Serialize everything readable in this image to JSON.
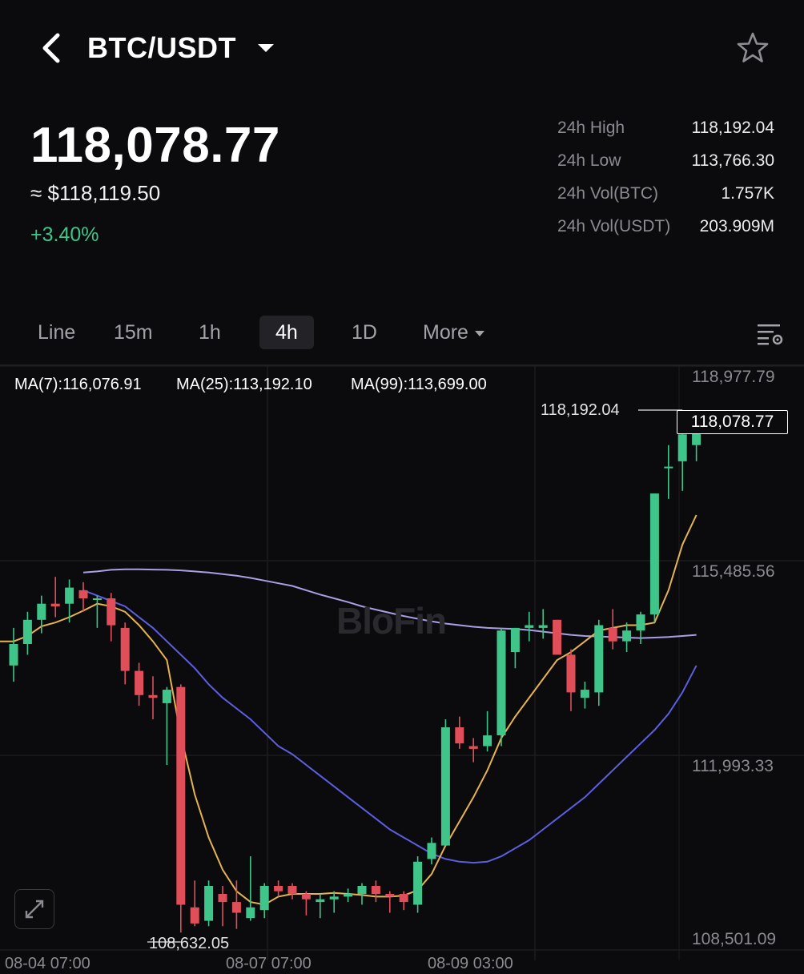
{
  "header": {
    "pair": "BTC/USDT",
    "back_icon": "chevron-left-icon",
    "dropdown_icon": "caret-down-icon",
    "favorite_icon": "star-outline-icon"
  },
  "ticker": {
    "last_price": "118,078.77",
    "usd_value": "≈ $118,119.50",
    "change": "+3.40%",
    "change_color": "#3fc58a",
    "stats": [
      {
        "label": "24h High",
        "value": "118,192.04"
      },
      {
        "label": "24h Low",
        "value": "113,766.30"
      },
      {
        "label": "24h Vol(BTC)",
        "value": "1.757K"
      },
      {
        "label": "24h Vol(USDT)",
        "value": "203.909M"
      }
    ]
  },
  "tabs": {
    "items": [
      "Line",
      "15m",
      "1h",
      "4h",
      "1D",
      "More"
    ],
    "active": "4h",
    "settings_icon": "chart-settings-icon"
  },
  "chart": {
    "ma7": "MA(7):116,076.91",
    "ma25": "MA(25):113,192.10",
    "ma99": "MA(99):113,699.00",
    "ma7_color": "#e5b44f",
    "ma25_color": "#5b5fe0",
    "ma99_color": "#a9a0e4",
    "up_color": "#3fc58a",
    "down_color": "#e04f59",
    "y_axis": [
      "118,977.79",
      "115,485.56",
      "111,993.33",
      "108,501.09"
    ],
    "current_price_tag": "118,078.77",
    "high_marker": "118,192.04",
    "low_marker": "108,632.05",
    "watermark": "BloFin",
    "expand_icon": "expand-icon",
    "date_labels": [
      "08-04 07:00",
      "08-07 07:00",
      "08-09 03:00"
    ]
  },
  "chart_data": {
    "type": "candlestick",
    "symbol": "BTC/USDT",
    "interval": "4h",
    "ylim": [
      108501.09,
      118977.79
    ],
    "y_ticks": [
      118977.79,
      115485.56,
      111993.33,
      108501.09
    ],
    "candles": [
      {
        "o": 113600,
        "h": 114300,
        "l": 113300,
        "c": 114000
      },
      {
        "o": 114000,
        "h": 114600,
        "l": 113800,
        "c": 114450
      },
      {
        "o": 114450,
        "h": 114900,
        "l": 114200,
        "c": 114750
      },
      {
        "o": 114750,
        "h": 115250,
        "l": 114500,
        "c": 114700
      },
      {
        "o": 114750,
        "h": 115200,
        "l": 114400,
        "c": 115050
      },
      {
        "o": 115000,
        "h": 115150,
        "l": 114600,
        "c": 114850
      },
      {
        "o": 114850,
        "h": 114900,
        "l": 114300,
        "c": 114850
      },
      {
        "o": 114850,
        "h": 114950,
        "l": 114050,
        "c": 114350
      },
      {
        "o": 114300,
        "h": 114400,
        "l": 113250,
        "c": 113500
      },
      {
        "o": 113500,
        "h": 113650,
        "l": 112850,
        "c": 113050
      },
      {
        "o": 113050,
        "h": 113400,
        "l": 112600,
        "c": 113000
      },
      {
        "o": 112900,
        "h": 113200,
        "l": 111750,
        "c": 113150
      },
      {
        "o": 113200,
        "h": 113250,
        "l": 108632,
        "c": 109150
      },
      {
        "o": 109100,
        "h": 109600,
        "l": 108750,
        "c": 108800
      },
      {
        "o": 108850,
        "h": 109600,
        "l": 108750,
        "c": 109500
      },
      {
        "o": 109350,
        "h": 109500,
        "l": 108750,
        "c": 109200
      },
      {
        "o": 109200,
        "h": 109600,
        "l": 108700,
        "c": 109000
      },
      {
        "o": 108900,
        "h": 110050,
        "l": 108850,
        "c": 109100
      },
      {
        "o": 109050,
        "h": 109550,
        "l": 108900,
        "c": 109500
      },
      {
        "o": 109500,
        "h": 109600,
        "l": 109300,
        "c": 109400
      },
      {
        "o": 109500,
        "h": 109550,
        "l": 109250,
        "c": 109350
      },
      {
        "o": 109350,
        "h": 109400,
        "l": 108950,
        "c": 109250
      },
      {
        "o": 109200,
        "h": 109350,
        "l": 108900,
        "c": 109250
      },
      {
        "o": 109250,
        "h": 109400,
        "l": 109000,
        "c": 109300
      },
      {
        "o": 109300,
        "h": 109450,
        "l": 109200,
        "c": 109350
      },
      {
        "o": 109350,
        "h": 109550,
        "l": 109150,
        "c": 109500
      },
      {
        "o": 109500,
        "h": 109600,
        "l": 109200,
        "c": 109350
      },
      {
        "o": 109350,
        "h": 109400,
        "l": 109000,
        "c": 109300
      },
      {
        "o": 109350,
        "h": 109400,
        "l": 109050,
        "c": 109200
      },
      {
        "o": 109150,
        "h": 110050,
        "l": 109000,
        "c": 109950
      },
      {
        "o": 110000,
        "h": 110400,
        "l": 109900,
        "c": 110300
      },
      {
        "o": 110250,
        "h": 112600,
        "l": 110250,
        "c": 112450
      },
      {
        "o": 112450,
        "h": 112650,
        "l": 112050,
        "c": 112150
      },
      {
        "o": 112100,
        "h": 112250,
        "l": 111800,
        "c": 112050
      },
      {
        "o": 112100,
        "h": 112750,
        "l": 112000,
        "c": 112300
      },
      {
        "o": 112300,
        "h": 114300,
        "l": 112100,
        "c": 114250
      },
      {
        "o": 113850,
        "h": 114300,
        "l": 113550,
        "c": 114300
      },
      {
        "o": 114300,
        "h": 114600,
        "l": 114050,
        "c": 114350
      },
      {
        "o": 114300,
        "h": 114650,
        "l": 114100,
        "c": 114350
      },
      {
        "o": 114450,
        "h": 114450,
        "l": 113800,
        "c": 113800
      },
      {
        "o": 113800,
        "h": 113900,
        "l": 112750,
        "c": 113100
      },
      {
        "o": 113000,
        "h": 113300,
        "l": 112800,
        "c": 113150
      },
      {
        "o": 113100,
        "h": 114450,
        "l": 112850,
        "c": 114350
      },
      {
        "o": 114300,
        "h": 114650,
        "l": 113900,
        "c": 114050
      },
      {
        "o": 114050,
        "h": 114400,
        "l": 113850,
        "c": 114250
      },
      {
        "o": 114250,
        "h": 114600,
        "l": 114000,
        "c": 114550
      },
      {
        "o": 114550,
        "h": 116800,
        "l": 114400,
        "c": 116800
      },
      {
        "o": 117300,
        "h": 117700,
        "l": 116700,
        "c": 117300
      },
      {
        "o": 117400,
        "h": 118192.04,
        "l": 116850,
        "c": 117900
      },
      {
        "o": 117700,
        "h": 118192.04,
        "l": 117400,
        "c": 118078.77
      }
    ],
    "ma7": [
      114050,
      114150,
      114330,
      114400,
      114500,
      114620,
      114750,
      114700,
      114600,
      114350,
      114050,
      113700,
      112300,
      111200,
      110400,
      109800,
      109400,
      109200,
      109150,
      109300,
      109350,
      109350,
      109350,
      109370,
      109350,
      109330,
      109300,
      109300,
      109320,
      109420,
      109720,
      110250,
      110700,
      111150,
      111650,
      112250,
      112650,
      113000,
      113350,
      113700,
      113850,
      114050,
      114250,
      114300,
      114350,
      114350,
      114400,
      115000,
      115850,
      116400
    ],
    "ma25": [
      115000,
      114900,
      114800,
      114700,
      114500,
      114300,
      114050,
      113800,
      113550,
      113250,
      113000,
      112800,
      112600,
      112350,
      112100,
      111950,
      111750,
      111550,
      111350,
      111150,
      110950,
      110750,
      110550,
      110400,
      110250,
      110100,
      110000,
      109950,
      109930,
      109950,
      110050,
      110200,
      110350,
      110550,
      110750,
      110950,
      111150,
      111400,
      111650,
      111900,
      112150,
      112400,
      112700,
      113100,
      113600
    ],
    "ma99": [
      115330,
      115350,
      115380,
      115390,
      115390,
      115385,
      115380,
      115370,
      115350,
      115330,
      115300,
      115270,
      115230,
      115180,
      115130,
      115080,
      115000,
      114920,
      114850,
      114780,
      114700,
      114640,
      114580,
      114520,
      114470,
      114420,
      114380,
      114350,
      114320,
      114300,
      114290,
      114280,
      114260,
      114230,
      114200,
      114170,
      114150,
      114140,
      114130,
      114120,
      114110,
      114120,
      114130,
      114150,
      114170
    ]
  }
}
